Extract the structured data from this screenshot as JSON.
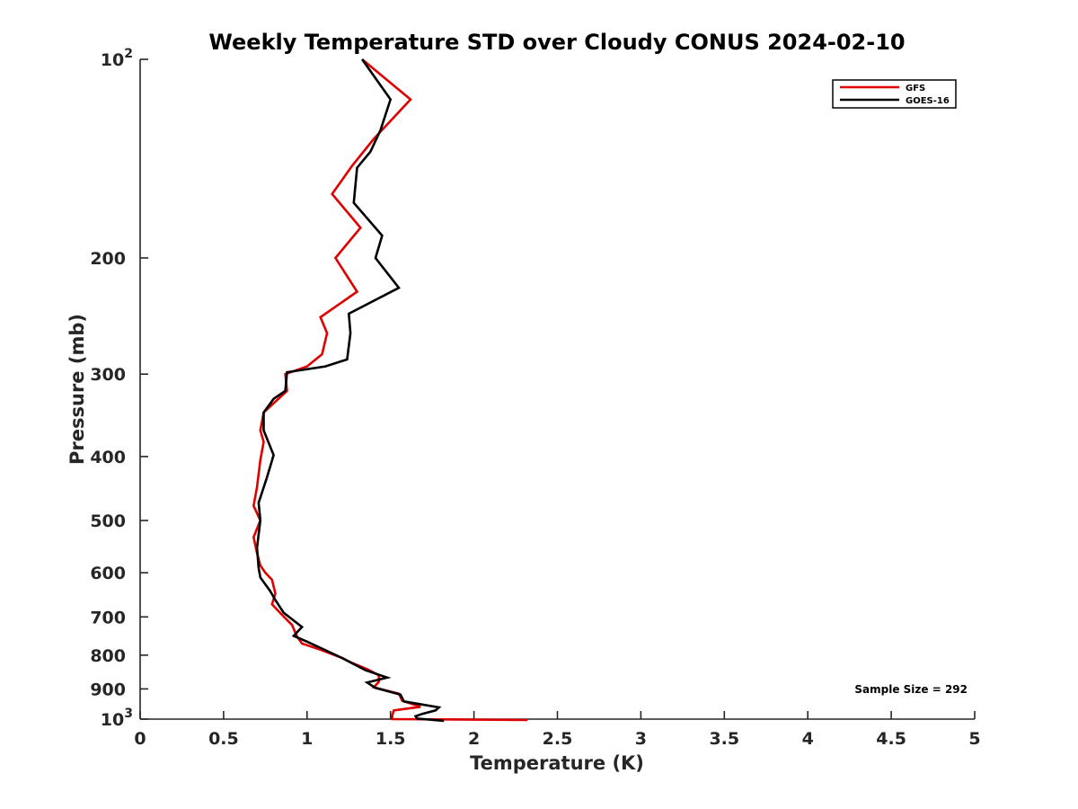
{
  "chart_data": {
    "type": "line",
    "title": "Weekly Temperature STD over Cloudy CONUS 2024-02-10",
    "xlabel": "Temperature (K)",
    "ylabel": "Pressure (mb)",
    "xlim": [
      0,
      5
    ],
    "ylim": [
      100,
      1000
    ],
    "y_scale": "log",
    "y_reversed": true,
    "x_ticks": [
      0,
      0.5,
      1,
      1.5,
      2,
      2.5,
      3,
      3.5,
      4,
      4.5,
      5
    ],
    "x_tick_labels": [
      "0",
      "0.5",
      "1",
      "1.5",
      "2",
      "2.5",
      "3",
      "3.5",
      "4",
      "4.5",
      "5"
    ],
    "y_ticks": [
      {
        "value": 100,
        "base": "10",
        "exp": "2"
      },
      {
        "value": 200,
        "label": "200"
      },
      {
        "value": 300,
        "label": "300"
      },
      {
        "value": 400,
        "label": "400"
      },
      {
        "value": 500,
        "label": "500"
      },
      {
        "value": 600,
        "label": "600"
      },
      {
        "value": 700,
        "label": "700"
      },
      {
        "value": 800,
        "label": "800"
      },
      {
        "value": 900,
        "label": "900"
      },
      {
        "value": 1000,
        "base": "10",
        "exp": "3"
      }
    ],
    "grid": false,
    "legend_position": "top-right",
    "annotation": "Sample Size = 292",
    "series": [
      {
        "name": "GFS",
        "color": "#e00000",
        "points": [
          [
            1.33,
            100
          ],
          [
            1.62,
            115
          ],
          [
            1.4,
            132
          ],
          [
            1.27,
            145
          ],
          [
            1.15,
            160
          ],
          [
            1.32,
            180
          ],
          [
            1.17,
            200
          ],
          [
            1.3,
            225
          ],
          [
            1.08,
            246
          ],
          [
            1.12,
            260
          ],
          [
            1.09,
            280
          ],
          [
            1.0,
            292
          ],
          [
            0.87,
            300
          ],
          [
            0.88,
            318
          ],
          [
            0.74,
            343
          ],
          [
            0.72,
            365
          ],
          [
            0.74,
            380
          ],
          [
            0.72,
            405
          ],
          [
            0.7,
            445
          ],
          [
            0.68,
            475
          ],
          [
            0.72,
            500
          ],
          [
            0.68,
            530
          ],
          [
            0.7,
            560
          ],
          [
            0.72,
            585
          ],
          [
            0.75,
            600
          ],
          [
            0.79,
            615
          ],
          [
            0.81,
            645
          ],
          [
            0.79,
            670
          ],
          [
            0.85,
            695
          ],
          [
            0.91,
            720
          ],
          [
            0.94,
            750
          ],
          [
            0.97,
            768
          ],
          [
            1.08,
            785
          ],
          [
            1.21,
            808
          ],
          [
            1.26,
            820
          ],
          [
            1.36,
            840
          ],
          [
            1.43,
            858
          ],
          [
            1.43,
            878
          ],
          [
            1.4,
            895
          ],
          [
            1.55,
            915
          ],
          [
            1.57,
            938
          ],
          [
            1.68,
            958
          ],
          [
            1.52,
            970
          ],
          [
            1.51,
            988
          ],
          [
            1.51,
            1000
          ],
          [
            2.32,
            1003
          ]
        ]
      },
      {
        "name": "GOES-16",
        "color": "#000000",
        "points": [
          [
            1.33,
            100
          ],
          [
            1.5,
            115
          ],
          [
            1.44,
            128
          ],
          [
            1.38,
            138
          ],
          [
            1.3,
            146
          ],
          [
            1.28,
            165
          ],
          [
            1.45,
            185
          ],
          [
            1.41,
            200
          ],
          [
            1.55,
            222
          ],
          [
            1.25,
            243
          ],
          [
            1.26,
            260
          ],
          [
            1.24,
            285
          ],
          [
            1.11,
            292
          ],
          [
            0.88,
            298
          ],
          [
            0.87,
            318
          ],
          [
            0.8,
            327
          ],
          [
            0.74,
            343
          ],
          [
            0.74,
            365
          ],
          [
            0.8,
            398
          ],
          [
            0.76,
            430
          ],
          [
            0.71,
            470
          ],
          [
            0.72,
            500
          ],
          [
            0.7,
            550
          ],
          [
            0.71,
            590
          ],
          [
            0.72,
            610
          ],
          [
            0.78,
            640
          ],
          [
            0.81,
            660
          ],
          [
            0.86,
            690
          ],
          [
            0.97,
            725
          ],
          [
            0.92,
            748
          ],
          [
            1.0,
            763
          ],
          [
            1.21,
            808
          ],
          [
            1.35,
            843
          ],
          [
            1.48,
            865
          ],
          [
            1.36,
            880
          ],
          [
            1.41,
            897
          ],
          [
            1.56,
            918
          ],
          [
            1.58,
            940
          ],
          [
            1.79,
            960
          ],
          [
            1.77,
            970
          ],
          [
            1.69,
            982
          ],
          [
            1.65,
            990
          ],
          [
            1.66,
            998
          ],
          [
            1.82,
            1006
          ]
        ]
      }
    ]
  }
}
